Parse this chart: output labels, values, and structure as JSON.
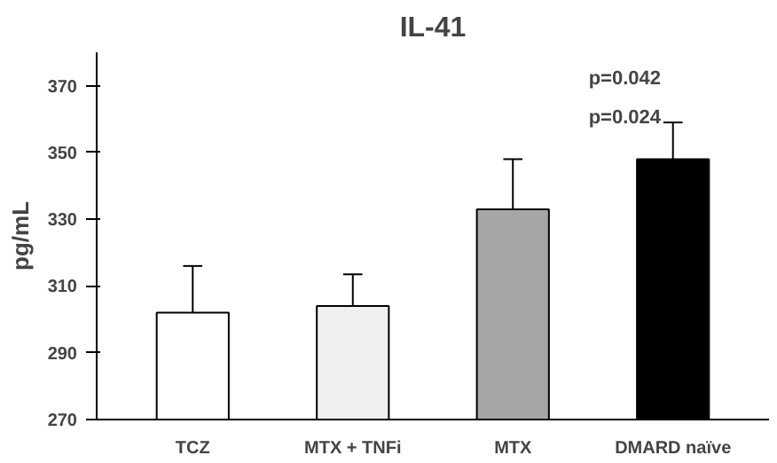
{
  "chart_data": {
    "type": "bar",
    "title": "IL-41",
    "ylabel": "pg/mL",
    "categories": [
      "TCZ",
      "MTX + TNFi",
      "MTX",
      "DMARD naïve"
    ],
    "values": [
      302,
      304,
      333,
      348
    ],
    "colors": [
      "#ffffff",
      "#efefef",
      "#a6a6a6",
      "#000000"
    ],
    "errors": [
      [
        302,
        316
      ],
      [
        304,
        313.5
      ],
      [
        333,
        348
      ],
      [
        348,
        359
      ]
    ],
    "ylim": [
      270,
      380
    ],
    "yticks": [
      270,
      290,
      310,
      330,
      350,
      370
    ],
    "grid": false,
    "annotations": [
      "p=0.042",
      "p=0.024"
    ]
  }
}
